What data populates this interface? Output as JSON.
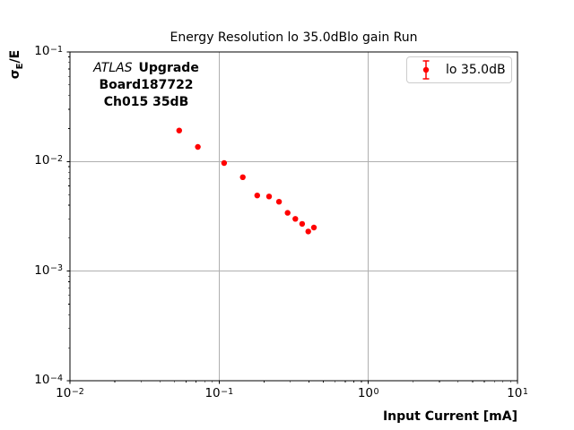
{
  "chart_data": {
    "type": "scatter",
    "title": "Energy Resolution lo 35.0dBlo gain Run",
    "xlabel": "Input Current [mA]",
    "ylabel": "σE/E",
    "ylabel_parts": {
      "sigma": "σ",
      "subscript": "E",
      "rest": "/E"
    },
    "x_scale": "log",
    "y_scale": "log",
    "xlim": [
      0.01,
      10
    ],
    "ylim": [
      0.0001,
      0.1
    ],
    "tick_base": "10",
    "x_tick_exponents": [
      "−2",
      "−1",
      "0",
      "1"
    ],
    "y_tick_exponents": [
      "−1",
      "−2",
      "−3",
      "−4"
    ],
    "grid": true,
    "legend": {
      "label": "lo 35.0dB",
      "position": "upper right"
    },
    "annotation": {
      "atlas": "ATLAS",
      "upgrade": "Upgrade",
      "board": "Board187722",
      "channel": "Ch015 35dB"
    },
    "series": [
      {
        "name": "lo 35.0dB",
        "color": "#ff0000",
        "marker": "circle-with-errorbar",
        "x": [
          0.054,
          0.072,
          0.108,
          0.144,
          0.18,
          0.216,
          0.252,
          0.288,
          0.324,
          0.36,
          0.396,
          0.432
        ],
        "y": [
          0.0192,
          0.0136,
          0.0097,
          0.0072,
          0.0049,
          0.0048,
          0.0043,
          0.0034,
          0.003,
          0.0027,
          0.0023,
          0.0025
        ]
      }
    ]
  },
  "colors": {
    "background": "#ffffff",
    "grid": "#b0b0b0",
    "spine": "#000000",
    "tick": "#000000",
    "legend_border": "#cccccc"
  }
}
